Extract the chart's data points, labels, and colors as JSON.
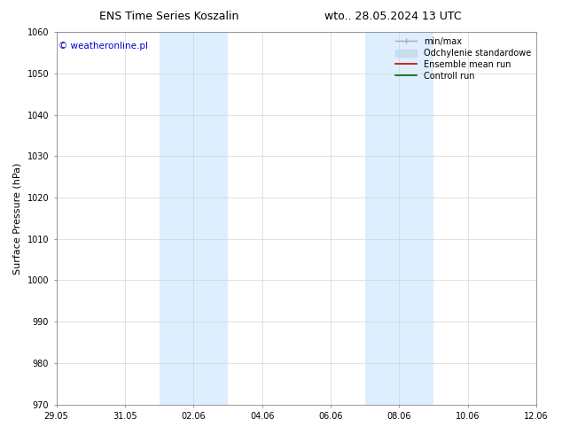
{
  "title_left": "ENS Time Series Koszalin",
  "title_right": "wto.. 28.05.2024 13 UTC",
  "ylabel": "Surface Pressure (hPa)",
  "ylim": [
    970,
    1060
  ],
  "yticks": [
    970,
    980,
    990,
    1000,
    1010,
    1020,
    1030,
    1040,
    1050,
    1060
  ],
  "xtick_labels": [
    "29.05",
    "31.05",
    "02.06",
    "04.06",
    "06.06",
    "08.06",
    "10.06",
    "12.06"
  ],
  "xtick_positions": [
    0,
    2,
    4,
    6,
    8,
    10,
    12,
    14
  ],
  "xlim": [
    0,
    14
  ],
  "shaded_bands": [
    {
      "x_start": 3.0,
      "x_end": 5.0,
      "color": "#ddeeff"
    },
    {
      "x_start": 9.0,
      "x_end": 11.0,
      "color": "#ddeeff"
    }
  ],
  "watermark_text": "© weatheronline.pl",
  "watermark_color": "#0000cc",
  "legend_labels": [
    "min/max",
    "Odchylenie standardowe",
    "Ensemble mean run",
    "Controll run"
  ],
  "legend_colors": [
    "#aaaaaa",
    "#c8dced",
    "#cc0000",
    "#006600"
  ],
  "bg_color": "#ffffff",
  "grid_color": "#cccccc",
  "title_fontsize": 9,
  "tick_fontsize": 7,
  "ylabel_fontsize": 8,
  "watermark_fontsize": 7.5,
  "legend_fontsize": 7
}
